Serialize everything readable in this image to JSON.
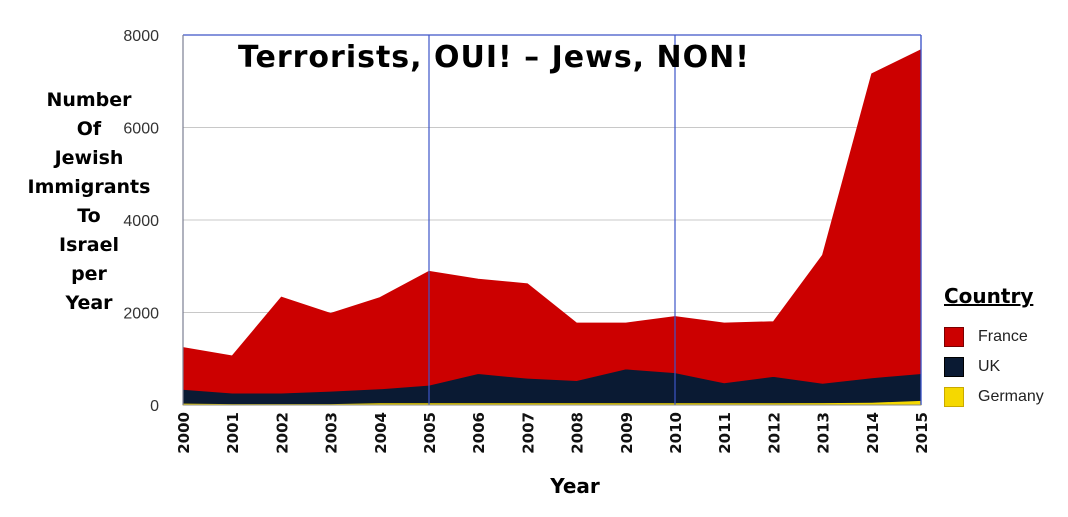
{
  "chart_data": {
    "type": "area",
    "stacked": true,
    "title": "Terrorists, OUI! – Jews, NON!",
    "xlabel": "Year",
    "ylabel_lines": [
      "Number",
      "Of",
      "Jewish",
      "Immigrants",
      "To",
      "Israel",
      "per",
      "Year"
    ],
    "ylim": [
      0,
      8000
    ],
    "yticks": [
      0,
      2000,
      4000,
      6000,
      8000
    ],
    "x": [
      "2000",
      "2001",
      "2002",
      "2003",
      "2004",
      "2005",
      "2006",
      "2007",
      "2008",
      "2009",
      "2010",
      "2011",
      "2012",
      "2013",
      "2014",
      "2015"
    ],
    "grid": true,
    "legend_title": "Country",
    "legend_position": "right",
    "series": [
      {
        "name": "Germany",
        "color": "#f5d800",
        "values": [
          40,
          30,
          30,
          30,
          50,
          50,
          50,
          50,
          50,
          50,
          50,
          50,
          50,
          50,
          60,
          100
        ]
      },
      {
        "name": "UK",
        "color": "#0a1a33",
        "values": [
          300,
          230,
          230,
          270,
          300,
          380,
          630,
          530,
          480,
          730,
          650,
          430,
          570,
          420,
          530,
          580
        ]
      },
      {
        "name": "France",
        "color": "#cc0000",
        "values": [
          900,
          800,
          2070,
          1680,
          1970,
          2460,
          2040,
          2040,
          1240,
          990,
          1210,
          1290,
          1180,
          2770,
          6570,
          7000
        ]
      }
    ]
  }
}
